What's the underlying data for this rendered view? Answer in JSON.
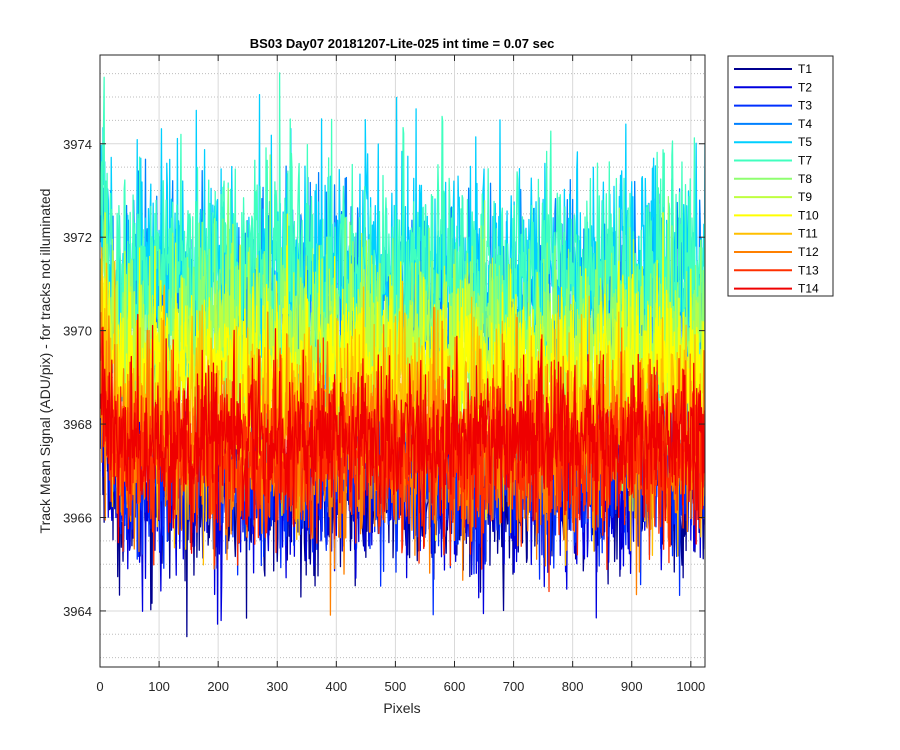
{
  "chart_data": {
    "type": "line",
    "title": "BS03 Day07 20181207-Lite-025 int time = 0.07 sec",
    "xlabel": "Pixels",
    "ylabel": "Track Mean Signal (ADU/pix) - for tracks not illuminated",
    "xlim": [
      0,
      1024
    ],
    "ylim": [
      3962.8,
      3975.9
    ],
    "xticks": [
      0,
      100,
      200,
      300,
      400,
      500,
      600,
      700,
      800,
      900,
      1000
    ],
    "yticks": [
      3964,
      3966,
      3968,
      3970,
      3972,
      3974
    ],
    "grid": "on",
    "minor_grid_y": "on",
    "legend_location": "outside-top-right",
    "n_points": 1024,
    "series": [
      {
        "name": "T1",
        "color": "#00008f",
        "mean": 3966.6,
        "noise": 0.9
      },
      {
        "name": "T2",
        "color": "#0000df",
        "mean": 3966.7,
        "noise": 0.9
      },
      {
        "name": "T3",
        "color": "#0030ff",
        "mean": 3966.9,
        "noise": 0.9
      },
      {
        "name": "T4",
        "color": "#0080ff",
        "mean": 3970.6,
        "noise": 1.1
      },
      {
        "name": "T5",
        "color": "#00cfff",
        "mean": 3971.2,
        "noise": 1.2
      },
      {
        "name": "T7",
        "color": "#40ffbf",
        "mean": 3971.2,
        "noise": 1.2
      },
      {
        "name": "T8",
        "color": "#8fff70",
        "mean": 3969.8,
        "noise": 1.0
      },
      {
        "name": "T9",
        "color": "#bfff40",
        "mean": 3969.4,
        "noise": 1.0
      },
      {
        "name": "T10",
        "color": "#ffff00",
        "mean": 3969.0,
        "noise": 1.0
      },
      {
        "name": "T11",
        "color": "#ffbf00",
        "mean": 3968.1,
        "noise": 1.0
      },
      {
        "name": "T12",
        "color": "#ff8000",
        "mean": 3967.4,
        "noise": 1.0
      },
      {
        "name": "T13",
        "color": "#ff3000",
        "mean": 3967.3,
        "noise": 0.9
      },
      {
        "name": "T14",
        "color": "#ef0000",
        "mean": 3967.7,
        "noise": 0.8
      }
    ]
  }
}
